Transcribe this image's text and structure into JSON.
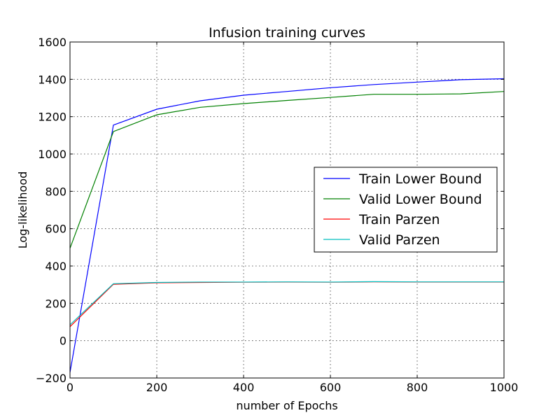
{
  "chart_data": {
    "type": "line",
    "title": "Infusion training curves",
    "xlabel": "number of Epochs",
    "ylabel": "Log-likelihood",
    "xlim": [
      0,
      1000
    ],
    "ylim": [
      -200,
      1600
    ],
    "xticks": [
      0,
      200,
      400,
      600,
      800,
      1000
    ],
    "yticks": [
      -200,
      0,
      200,
      400,
      600,
      800,
      1000,
      1200,
      1400,
      1600
    ],
    "grid": true,
    "legend_position": "right",
    "series": [
      {
        "name": "Train Lower Bound",
        "color": "#0000ff",
        "x": [
          0,
          100,
          200,
          300,
          400,
          500,
          600,
          700,
          800,
          900,
          1000
        ],
        "y": [
          -170,
          1155,
          1240,
          1285,
          1315,
          1335,
          1355,
          1372,
          1385,
          1398,
          1403
        ]
      },
      {
        "name": "Valid Lower Bound",
        "color": "#008000",
        "x": [
          0,
          100,
          200,
          300,
          400,
          500,
          600,
          700,
          800,
          900,
          1000
        ],
        "y": [
          495,
          1120,
          1210,
          1250,
          1270,
          1287,
          1303,
          1320,
          1320,
          1322,
          1335
        ]
      },
      {
        "name": "Train Parzen",
        "color": "#ff0000",
        "x": [
          0,
          100,
          200,
          300,
          400,
          500,
          600,
          700,
          800,
          900,
          1000
        ],
        "y": [
          75,
          302,
          310,
          312,
          313,
          314,
          313,
          315,
          314,
          314,
          314
        ]
      },
      {
        "name": "Valid Parzen",
        "color": "#00bfbf",
        "x": [
          0,
          100,
          200,
          300,
          400,
          500,
          600,
          700,
          800,
          900,
          1000
        ],
        "y": [
          85,
          305,
          312,
          314,
          314,
          315,
          314,
          316,
          315,
          315,
          315
        ]
      }
    ]
  }
}
